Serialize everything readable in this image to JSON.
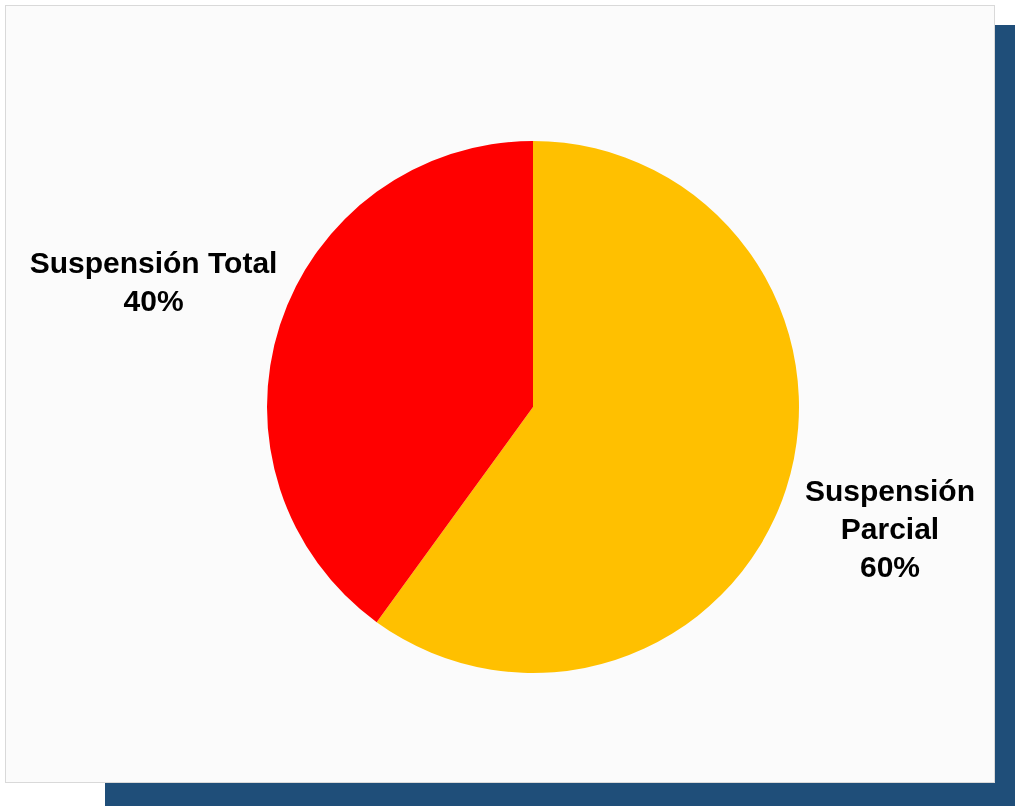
{
  "chart_data": {
    "type": "pie",
    "categories": [
      "Suspensión Parcial",
      "Suspensión Total"
    ],
    "values": [
      60,
      40
    ],
    "colors": [
      "#ffc000",
      "#ff0000"
    ],
    "value_labels": [
      "60%",
      "40%"
    ],
    "data_labels": true
  }
}
